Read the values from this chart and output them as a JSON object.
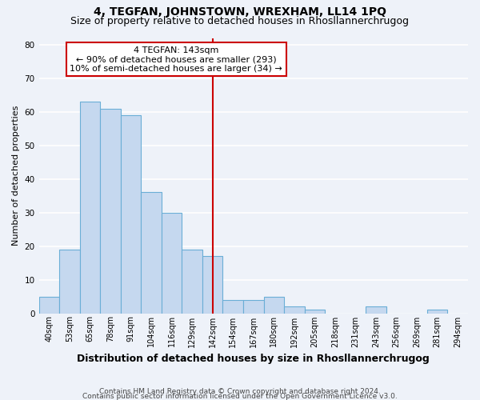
{
  "title": "4, TEGFAN, JOHNSTOWN, WREXHAM, LL14 1PQ",
  "subtitle": "Size of property relative to detached houses in Rhosllannerchrugog",
  "xlabel": "Distribution of detached houses by size in Rhosllannerchrugog",
  "ylabel": "Number of detached properties",
  "categories": [
    "40sqm",
    "53sqm",
    "65sqm",
    "78sqm",
    "91sqm",
    "104sqm",
    "116sqm",
    "129sqm",
    "142sqm",
    "154sqm",
    "167sqm",
    "180sqm",
    "192sqm",
    "205sqm",
    "218sqm",
    "231sqm",
    "243sqm",
    "256sqm",
    "269sqm",
    "281sqm",
    "294sqm"
  ],
  "values": [
    5,
    19,
    63,
    61,
    59,
    36,
    30,
    19,
    17,
    4,
    4,
    5,
    2,
    1,
    0,
    0,
    2,
    0,
    0,
    1,
    0
  ],
  "bar_color": "#c5d8ef",
  "bar_edge_color": "#6aaed6",
  "vline_color": "#cc0000",
  "annotation_line1": "4 TEGFAN: 143sqm",
  "annotation_line2": "← 90% of detached houses are smaller (293)",
  "annotation_line3": "10% of semi-detached houses are larger (34) →",
  "annotation_box_color": "#ffffff",
  "annotation_box_edge_color": "#cc0000",
  "ylim": [
    0,
    82
  ],
  "yticks": [
    0,
    10,
    20,
    30,
    40,
    50,
    60,
    70,
    80
  ],
  "footer_line1": "Contains HM Land Registry data © Crown copyright and database right 2024.",
  "footer_line2": "Contains public sector information licensed under the Open Government Licence v3.0.",
  "background_color": "#eef2f9",
  "grid_color": "#ffffff",
  "title_fontsize": 10,
  "subtitle_fontsize": 9,
  "annotation_fontsize": 8,
  "xlabel_fontsize": 9,
  "ylabel_fontsize": 8,
  "footer_fontsize": 6.5,
  "tick_fontsize": 7,
  "ytick_fontsize": 7.5
}
